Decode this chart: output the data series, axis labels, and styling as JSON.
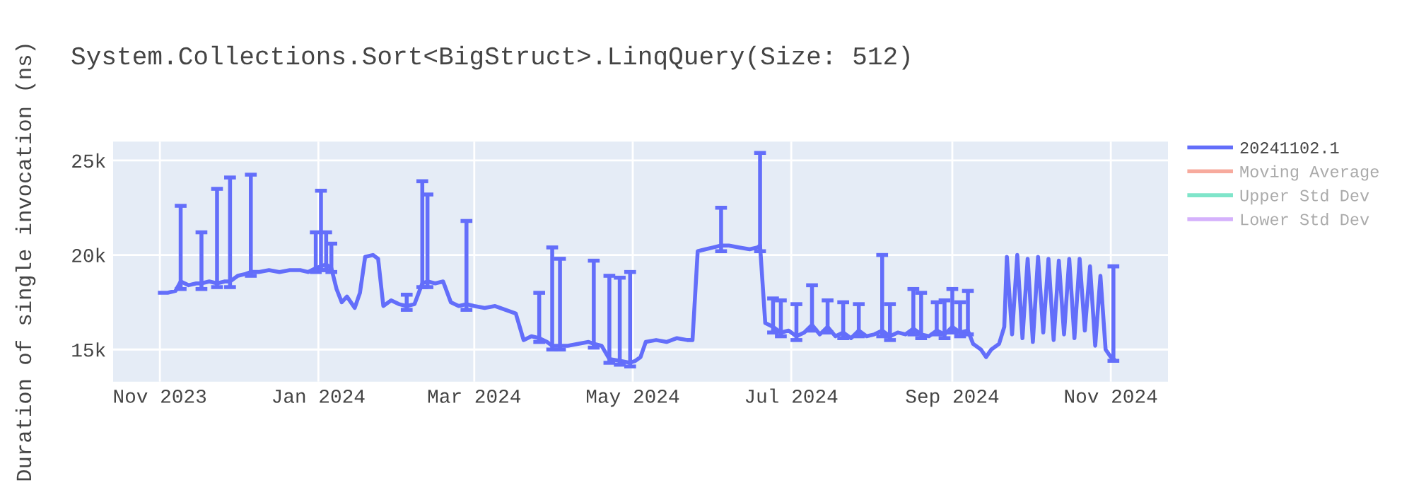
{
  "chart_data": {
    "type": "line",
    "title": "System.Collections.Sort<BigStruct>.LinqQuery(Size: 512)",
    "ylabel": "Duration of single invocation (ns)",
    "xlim": [
      "2023-10-14",
      "2024-11-23"
    ],
    "ylim": [
      13300,
      26000
    ],
    "xticks": [
      {
        "value": "2023-11-01",
        "label": "Nov 2023"
      },
      {
        "value": "2024-01-01",
        "label": "Jan 2024"
      },
      {
        "value": "2024-03-01",
        "label": "Mar 2024"
      },
      {
        "value": "2024-05-01",
        "label": "May 2024"
      },
      {
        "value": "2024-07-01",
        "label": "Jul 2024"
      },
      {
        "value": "2024-09-01",
        "label": "Sep 2024"
      },
      {
        "value": "2024-11-01",
        "label": "Nov 2024"
      }
    ],
    "yticks": [
      {
        "value": 15000,
        "label": "15k"
      },
      {
        "value": 20000,
        "label": "20k"
      },
      {
        "value": 25000,
        "label": "25k"
      }
    ],
    "grid": true,
    "legend": "top right",
    "marker": "none",
    "line_style": "solid",
    "x": [
      "2023-11-01",
      "2023-11-04",
      "2023-11-07",
      "2023-11-09",
      "2023-11-12",
      "2023-11-15",
      "2023-11-17",
      "2023-11-20",
      "2023-11-23",
      "2023-11-26",
      "2023-11-28",
      "2023-12-01",
      "2023-12-04",
      "2023-12-06",
      "2023-12-09",
      "2023-12-13",
      "2023-12-17",
      "2023-12-21",
      "2023-12-25",
      "2023-12-28",
      "2023-12-31",
      "2024-01-02",
      "2024-01-04",
      "2024-01-06",
      "2024-01-08",
      "2024-01-10",
      "2024-01-12",
      "2024-01-15",
      "2024-01-17",
      "2024-01-19",
      "2024-01-22",
      "2024-01-24",
      "2024-01-26",
      "2024-01-29",
      "2024-02-01",
      "2024-02-04",
      "2024-02-07",
      "2024-02-10",
      "2024-02-12",
      "2024-02-15",
      "2024-02-18",
      "2024-02-21",
      "2024-02-24",
      "2024-02-27",
      "2024-03-01",
      "2024-03-05",
      "2024-03-09",
      "2024-03-13",
      "2024-03-17",
      "2024-03-20",
      "2024-03-23",
      "2024-03-26",
      "2024-03-29",
      "2024-03-31",
      "2024-04-03",
      "2024-04-06",
      "2024-04-10",
      "2024-04-14",
      "2024-04-16",
      "2024-04-19",
      "2024-04-22",
      "2024-04-26",
      "2024-04-30",
      "2024-05-02",
      "2024-05-04",
      "2024-05-06",
      "2024-05-10",
      "2024-05-14",
      "2024-05-18",
      "2024-05-22",
      "2024-05-24",
      "2024-05-26",
      "2024-05-29",
      "2024-06-01",
      "2024-06-04",
      "2024-06-07",
      "2024-06-11",
      "2024-06-15",
      "2024-06-18",
      "2024-06-19",
      "2024-06-21",
      "2024-06-24",
      "2024-06-27",
      "2024-06-30",
      "2024-07-03",
      "2024-07-06",
      "2024-07-09",
      "2024-07-12",
      "2024-07-15",
      "2024-07-18",
      "2024-07-21",
      "2024-07-24",
      "2024-07-27",
      "2024-07-30",
      "2024-08-02",
      "2024-08-05",
      "2024-08-08",
      "2024-08-11",
      "2024-08-14",
      "2024-08-17",
      "2024-08-20",
      "2024-08-23",
      "2024-08-26",
      "2024-08-29",
      "2024-09-01",
      "2024-09-04",
      "2024-09-07",
      "2024-09-09",
      "2024-09-12",
      "2024-09-14",
      "2024-09-16",
      "2024-09-19",
      "2024-09-21",
      "2024-09-22",
      "2024-09-24",
      "2024-09-26",
      "2024-09-28",
      "2024-09-30",
      "2024-10-02",
      "2024-10-04",
      "2024-10-06",
      "2024-10-08",
      "2024-10-10",
      "2024-10-12",
      "2024-10-14",
      "2024-10-16",
      "2024-10-18",
      "2024-10-20",
      "2024-10-22",
      "2024-10-24",
      "2024-10-26",
      "2024-10-28",
      "2024-10-30",
      "2024-11-01",
      "2024-11-02"
    ],
    "series": [
      {
        "name": "20241102.1",
        "color": "#636efa",
        "values": [
          18000,
          18000,
          18100,
          18600,
          18400,
          18500,
          18500,
          18600,
          18500,
          18600,
          18600,
          18900,
          19000,
          19100,
          19100,
          19200,
          19100,
          19200,
          19200,
          19100,
          19300,
          19400,
          19500,
          19300,
          18200,
          17500,
          17800,
          17200,
          18000,
          19900,
          20000,
          19800,
          17300,
          17600,
          17400,
          17300,
          17400,
          18500,
          18600,
          18500,
          18600,
          17500,
          17300,
          17400,
          17300,
          17200,
          17300,
          17100,
          16900,
          15500,
          15700,
          15600,
          15400,
          15200,
          15200,
          15200,
          15300,
          15400,
          15300,
          15200,
          14500,
          14400,
          14300,
          14400,
          14600,
          15400,
          15500,
          15400,
          15600,
          15500,
          15500,
          20200,
          20300,
          20400,
          20500,
          20500,
          20400,
          20300,
          20400,
          20500,
          16400,
          16200,
          15900,
          16000,
          15700,
          15900,
          16300,
          15800,
          16200,
          15700,
          15900,
          15600,
          16000,
          15700,
          15800,
          16000,
          15700,
          15900,
          15800,
          16100,
          15800,
          15700,
          16000,
          15800,
          16200,
          15900,
          16000,
          15300,
          15000,
          14600,
          15000,
          15300,
          16200,
          19900,
          15800,
          20000,
          15600,
          19800,
          15400,
          19900,
          15900,
          19800,
          15500,
          19700,
          15800,
          19800,
          15600,
          19800,
          16000,
          19400,
          15200,
          18900,
          15000,
          14600,
          14500
        ],
        "errors": [
          null,
          null,
          null,
          [
            18200,
            22600
          ],
          null,
          null,
          [
            18200,
            21200
          ],
          null,
          [
            18300,
            23500
          ],
          null,
          [
            18300,
            24100
          ],
          null,
          null,
          [
            18900,
            24250
          ],
          null,
          null,
          null,
          null,
          null,
          null,
          [
            19100,
            21200
          ],
          [
            19200,
            23400
          ],
          [
            19200,
            21200
          ],
          [
            19100,
            20600
          ],
          null,
          null,
          null,
          null,
          null,
          null,
          null,
          null,
          null,
          null,
          null,
          [
            17100,
            17900
          ],
          null,
          [
            18300,
            23900
          ],
          [
            18300,
            23200
          ],
          null,
          null,
          null,
          null,
          [
            17100,
            21800
          ],
          null,
          null,
          null,
          null,
          null,
          null,
          null,
          [
            15400,
            18000
          ],
          null,
          [
            15000,
            20400
          ],
          [
            15000,
            19800
          ],
          null,
          null,
          null,
          [
            15100,
            19700
          ],
          null,
          [
            14300,
            18900
          ],
          [
            14200,
            18800
          ],
          [
            14100,
            19100
          ],
          null,
          null,
          null,
          null,
          null,
          null,
          null,
          null,
          null,
          null,
          null,
          [
            20200,
            22500
          ],
          null,
          null,
          null,
          null,
          [
            20200,
            25400
          ],
          null,
          [
            15900,
            17700
          ],
          [
            15700,
            17600
          ],
          null,
          [
            15500,
            17400
          ],
          null,
          [
            16000,
            18400
          ],
          null,
          [
            15900,
            17600
          ],
          null,
          [
            15600,
            17500
          ],
          null,
          [
            15700,
            17400
          ],
          null,
          null,
          [
            15700,
            20000
          ],
          [
            15500,
            17400
          ],
          null,
          null,
          [
            15800,
            18200
          ],
          [
            15600,
            18000
          ],
          null,
          [
            15800,
            17500
          ],
          [
            15600,
            17600
          ],
          [
            15900,
            18200
          ],
          [
            15700,
            17500
          ],
          [
            15800,
            18100
          ],
          null,
          null,
          null,
          null,
          null,
          null,
          null,
          null,
          null,
          null,
          null,
          null,
          null,
          null,
          null,
          null,
          null,
          null,
          null,
          null,
          null,
          null,
          null,
          null,
          null,
          null,
          null,
          [
            14400,
            19400
          ]
        ]
      },
      {
        "name": "Moving Average",
        "color": "#ef553b",
        "values": [
          null,
          null,
          null,
          null,
          null,
          null,
          null,
          null,
          null,
          null,
          null,
          null,
          null,
          null,
          null,
          null,
          null,
          null,
          null,
          null,
          null,
          null,
          null,
          null,
          null,
          null,
          null,
          null,
          null,
          null,
          null,
          null,
          null,
          null,
          null,
          null,
          null,
          null,
          null,
          null,
          null,
          null,
          null,
          null,
          null,
          null,
          null,
          null,
          null,
          null,
          null,
          null,
          null,
          null,
          null,
          null,
          null,
          null,
          null,
          null,
          null,
          null,
          null,
          null,
          null,
          null,
          null,
          null,
          null,
          null,
          null,
          null,
          null,
          null,
          null,
          null,
          null,
          null,
          null,
          null,
          null,
          null,
          null,
          null,
          null,
          null,
          null,
          null,
          null,
          null,
          null,
          null,
          null,
          null,
          null,
          null,
          null,
          null,
          null,
          null,
          null,
          null,
          null,
          null,
          null,
          null,
          null,
          null,
          null,
          null,
          null,
          null,
          null,
          null,
          null,
          null,
          null,
          null,
          null,
          null,
          null,
          null,
          null,
          null,
          null,
          null,
          null,
          null,
          null,
          null,
          null,
          null,
          null,
          null,
          null
        ]
      },
      {
        "name": "Upper Std Dev",
        "color": "#00cc96",
        "values": [
          null,
          null,
          null,
          null,
          null,
          null,
          null,
          null,
          null,
          null,
          null,
          null,
          null,
          null,
          null,
          null,
          null,
          null,
          null,
          null,
          null,
          null,
          null,
          null,
          null,
          null,
          null,
          null,
          null,
          null,
          null,
          null,
          null,
          null,
          null,
          null,
          null,
          null,
          null,
          null,
          null,
          null,
          null,
          null,
          null,
          null,
          null,
          null,
          null,
          null,
          null,
          null,
          null,
          null,
          null,
          null,
          null,
          null,
          null,
          null,
          null,
          null,
          null,
          null,
          null,
          null,
          null,
          null,
          null,
          null,
          null,
          null,
          null,
          null,
          null,
          null,
          null,
          null,
          null,
          null,
          null,
          null,
          null,
          null,
          null,
          null,
          null,
          null,
          null,
          null,
          null,
          null,
          null,
          null,
          null,
          null,
          null,
          null,
          null,
          null,
          null,
          null,
          null,
          null,
          null,
          null,
          null,
          null,
          null,
          null,
          null,
          null,
          null,
          null,
          null,
          null,
          null,
          null,
          null,
          null,
          null,
          null,
          null,
          null,
          null,
          null,
          null,
          null,
          null,
          null,
          null,
          null,
          null,
          null,
          null
        ]
      },
      {
        "name": "Lower Std Dev",
        "color": "#ab63fa",
        "values": [
          null,
          null,
          null,
          null,
          null,
          null,
          null,
          null,
          null,
          null,
          null,
          null,
          null,
          null,
          null,
          null,
          null,
          null,
          null,
          null,
          null,
          null,
          null,
          null,
          null,
          null,
          null,
          null,
          null,
          null,
          null,
          null,
          null,
          null,
          null,
          null,
          null,
          null,
          null,
          null,
          null,
          null,
          null,
          null,
          null,
          null,
          null,
          null,
          null,
          null,
          null,
          null,
          null,
          null,
          null,
          null,
          null,
          null,
          null,
          null,
          null,
          null,
          null,
          null,
          null,
          null,
          null,
          null,
          null,
          null,
          null,
          null,
          null,
          null,
          null,
          null,
          null,
          null,
          null,
          null,
          null,
          null,
          null,
          null,
          null,
          null,
          null,
          null,
          null,
          null,
          null,
          null,
          null,
          null,
          null,
          null,
          null,
          null,
          null,
          null,
          null,
          null,
          null,
          null,
          null,
          null,
          null,
          null,
          null,
          null,
          null,
          null,
          null,
          null,
          null,
          null,
          null,
          null,
          null,
          null,
          null,
          null,
          null,
          null,
          null,
          null,
          null,
          null,
          null,
          null,
          null,
          null,
          null,
          null,
          null
        ]
      }
    ]
  }
}
